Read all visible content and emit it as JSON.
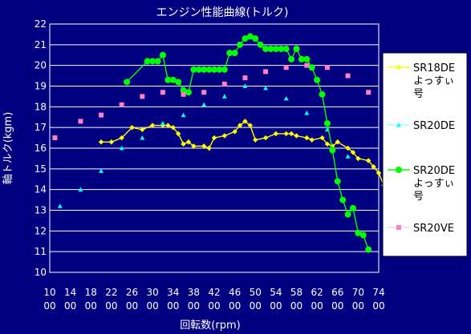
{
  "chart_data": {
    "type": "line",
    "title": "エンジン性能曲線(トルク)",
    "xlabel": "回転数(rpm)",
    "ylabel": "軸トルク(kgm)",
    "xlim": [
      1000,
      7400
    ],
    "ylim": [
      10,
      22
    ],
    "x_ticks": [
      {
        "line1": "10",
        "line2": "00"
      },
      {
        "line1": "14",
        "line2": "00"
      },
      {
        "line1": "18",
        "line2": "00"
      },
      {
        "line1": "22",
        "line2": "00"
      },
      {
        "line1": "26",
        "line2": "00"
      },
      {
        "line1": "30",
        "line2": "00"
      },
      {
        "line1": "34",
        "line2": "00"
      },
      {
        "line1": "38",
        "line2": "00"
      },
      {
        "line1": "42",
        "line2": "00"
      },
      {
        "line1": "46",
        "line2": "00"
      },
      {
        "line1": "50",
        "line2": "00"
      },
      {
        "line1": "54",
        "line2": "00"
      },
      {
        "line1": "58",
        "line2": "00"
      },
      {
        "line1": "62",
        "line2": "00"
      },
      {
        "line1": "66",
        "line2": "00"
      },
      {
        "line1": "70",
        "line2": "00"
      },
      {
        "line1": "74",
        "line2": "00"
      }
    ],
    "y_ticks": [
      "10",
      "11",
      "12",
      "13",
      "14",
      "15",
      "16",
      "17",
      "18",
      "19",
      "20",
      "21",
      "22"
    ],
    "grid": true,
    "legend_position": "right",
    "colors": {
      "plot_background": "#000080",
      "outer_background": "#000080",
      "gridline": "#ffffff",
      "legend_background": "#ffffff"
    },
    "series": [
      {
        "name": "SR18DEよっすぃ号",
        "legend_lines": [
          "SR18DE",
          "よっすぃ",
          "号"
        ],
        "color": "#ffff00",
        "marker": "diamond",
        "line": true,
        "points": [
          [
            2000,
            16.3
          ],
          [
            2200,
            16.3
          ],
          [
            2400,
            16.5
          ],
          [
            2600,
            17.0
          ],
          [
            2800,
            16.9
          ],
          [
            3000,
            17.1
          ],
          [
            3200,
            17.1
          ],
          [
            3300,
            17.1
          ],
          [
            3400,
            17.0
          ],
          [
            3500,
            16.7
          ],
          [
            3600,
            16.2
          ],
          [
            3700,
            16.3
          ],
          [
            3800,
            16.1
          ],
          [
            4000,
            16.1
          ],
          [
            4100,
            16.0
          ],
          [
            4200,
            16.5
          ],
          [
            4400,
            16.6
          ],
          [
            4600,
            16.8
          ],
          [
            4700,
            17.1
          ],
          [
            4800,
            17.3
          ],
          [
            4900,
            17.1
          ],
          [
            5000,
            16.4
          ],
          [
            5200,
            16.5
          ],
          [
            5400,
            16.7
          ],
          [
            5600,
            16.7
          ],
          [
            5700,
            16.7
          ],
          [
            5800,
            16.6
          ],
          [
            6000,
            16.5
          ],
          [
            6100,
            16.4
          ],
          [
            6300,
            16.5
          ],
          [
            6400,
            16.2
          ],
          [
            6500,
            16.1
          ],
          [
            6600,
            16.3
          ],
          [
            6800,
            16.0
          ],
          [
            6900,
            15.8
          ],
          [
            7000,
            15.5
          ],
          [
            7200,
            15.4
          ],
          [
            7300,
            15.1
          ],
          [
            7400,
            14.8
          ],
          [
            7500,
            14.2
          ]
        ]
      },
      {
        "name": "SR20DE",
        "legend_lines": [
          "SR20DE"
        ],
        "color": "#00ffff",
        "marker": "triangle",
        "line": false,
        "points": [
          [
            1200,
            13.2
          ],
          [
            1600,
            14.0
          ],
          [
            2000,
            14.9
          ],
          [
            2400,
            16.0
          ],
          [
            2800,
            16.5
          ],
          [
            3200,
            17.2
          ],
          [
            3600,
            17.6
          ],
          [
            4000,
            18.1
          ],
          [
            4400,
            18.5
          ],
          [
            4800,
            19.0
          ],
          [
            5200,
            18.9
          ],
          [
            5600,
            18.4
          ],
          [
            6000,
            17.7
          ],
          [
            6400,
            16.9
          ],
          [
            6800,
            15.6
          ]
        ]
      },
      {
        "name": "SR20DEよっすぃ号",
        "legend_lines": [
          "SR20DE",
          "よっすぃ",
          "号"
        ],
        "color": "#00ff00",
        "marker": "circle",
        "line": true,
        "points": [
          [
            2500,
            19.2
          ],
          [
            2900,
            20.2
          ],
          [
            3000,
            20.2
          ],
          [
            3100,
            20.2
          ],
          [
            3200,
            20.5
          ],
          [
            3300,
            19.3
          ],
          [
            3400,
            19.3
          ],
          [
            3500,
            19.2
          ],
          [
            3600,
            18.8
          ],
          [
            3700,
            18.7
          ],
          [
            3800,
            19.8
          ],
          [
            3900,
            19.8
          ],
          [
            4000,
            19.8
          ],
          [
            4100,
            19.8
          ],
          [
            4200,
            19.8
          ],
          [
            4300,
            19.8
          ],
          [
            4400,
            19.8
          ],
          [
            4500,
            20.6
          ],
          [
            4600,
            20.6
          ],
          [
            4700,
            21.0
          ],
          [
            4800,
            21.3
          ],
          [
            4900,
            21.4
          ],
          [
            5000,
            21.3
          ],
          [
            5100,
            21.0
          ],
          [
            5200,
            20.8
          ],
          [
            5300,
            20.8
          ],
          [
            5400,
            20.8
          ],
          [
            5500,
            20.8
          ],
          [
            5600,
            20.8
          ],
          [
            5700,
            20.3
          ],
          [
            5800,
            20.8
          ],
          [
            5900,
            20.3
          ],
          [
            6000,
            20.3
          ],
          [
            6100,
            19.9
          ],
          [
            6200,
            19.3
          ],
          [
            6300,
            18.6
          ],
          [
            6400,
            17.2
          ],
          [
            6500,
            15.9
          ],
          [
            6600,
            14.4
          ],
          [
            6700,
            13.5
          ],
          [
            6800,
            12.8
          ],
          [
            6900,
            13.1
          ],
          [
            7000,
            11.9
          ],
          [
            7100,
            11.8
          ],
          [
            7200,
            11.1
          ]
        ]
      },
      {
        "name": "SR20VE",
        "legend_lines": [
          "SR20VE"
        ],
        "color": "#ff80c0",
        "marker": "square",
        "line": false,
        "points": [
          [
            1100,
            16.5
          ],
          [
            1600,
            17.3
          ],
          [
            2000,
            17.6
          ],
          [
            2400,
            18.1
          ],
          [
            2800,
            18.5
          ],
          [
            3200,
            18.7
          ],
          [
            3600,
            18.6
          ],
          [
            4000,
            18.7
          ],
          [
            4400,
            19.1
          ],
          [
            4800,
            19.4
          ],
          [
            5200,
            19.7
          ],
          [
            5600,
            19.9
          ],
          [
            6000,
            20.0
          ],
          [
            6400,
            19.9
          ],
          [
            6800,
            19.5
          ],
          [
            7200,
            18.7
          ]
        ]
      }
    ]
  }
}
